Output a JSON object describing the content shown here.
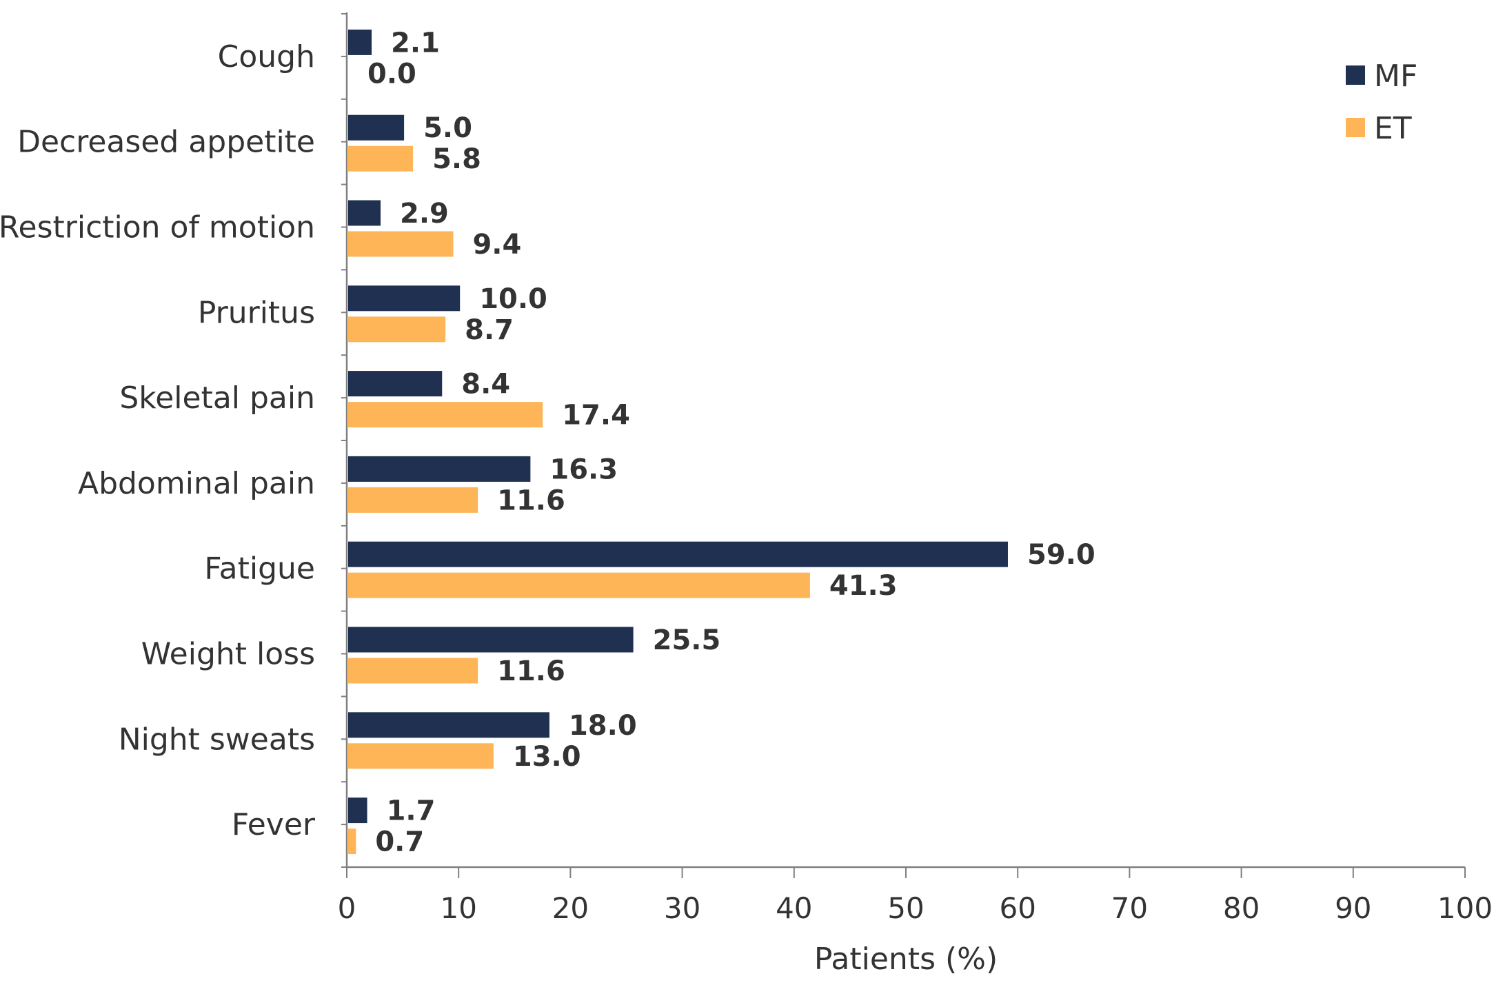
{
  "chart_data": {
    "type": "bar",
    "orientation": "horizontal",
    "categories": [
      "Cough",
      "Decreased appetite",
      "Restriction of motion",
      "Pruritus",
      "Skeletal pain",
      "Abdominal pain",
      "Fatigue",
      "Weight loss",
      "Night sweats",
      "Fever"
    ],
    "series": [
      {
        "name": "MF",
        "color": "#1f3050",
        "values": [
          2.1,
          5.0,
          2.9,
          10.0,
          8.4,
          16.3,
          59.0,
          25.5,
          18.0,
          1.7
        ],
        "labels": [
          "2.1",
          "5.0",
          "2.9",
          "10.0",
          "8.4",
          "16.3",
          "59.0",
          "25.5",
          "18.0",
          "1.7"
        ]
      },
      {
        "name": "ET",
        "color": "#fdb557",
        "values": [
          0.0,
          5.8,
          9.4,
          8.7,
          17.4,
          11.6,
          41.3,
          11.6,
          13.0,
          0.7
        ],
        "labels": [
          "0.0",
          "5.8",
          "9.4",
          "8.7",
          "17.4",
          "11.6",
          "41.3",
          "11.6",
          "13.0",
          "0.7"
        ]
      }
    ],
    "xlabel": "Patients (%)",
    "ylabel": "",
    "xlim": [
      0,
      100
    ],
    "xticks": [
      0,
      10,
      20,
      30,
      40,
      50,
      60,
      70,
      80,
      90,
      100
    ],
    "xtick_labels": [
      "0",
      "10",
      "20",
      "30",
      "40",
      "50",
      "60",
      "70",
      "80",
      "90",
      "100"
    ],
    "grid": false,
    "legend_position": "top-right",
    "axis_color": "#808080"
  }
}
